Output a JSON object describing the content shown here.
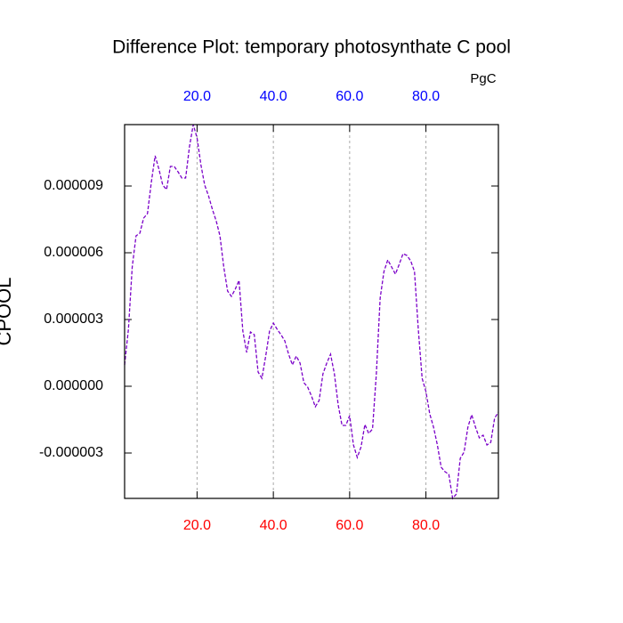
{
  "chart_data": {
    "type": "line",
    "title": "Difference Plot: temporary photosynthate C pool",
    "ylabel": "CPOOL",
    "x2label": "PgC",
    "x": [
      1,
      2,
      3,
      4,
      5,
      6,
      7,
      8,
      9,
      10,
      11,
      12,
      13,
      14,
      15,
      16,
      17,
      18,
      19,
      20,
      21,
      22,
      23,
      24,
      25,
      26,
      27,
      28,
      29,
      30,
      31,
      32,
      33,
      34,
      35,
      36,
      37,
      38,
      39,
      40,
      41,
      42,
      43,
      44,
      45,
      46,
      47,
      48,
      49,
      50,
      51,
      52,
      53,
      54,
      55,
      56,
      57,
      58,
      59,
      60,
      61,
      62,
      63,
      64,
      65,
      66,
      67,
      68,
      69,
      70,
      71,
      72,
      73,
      74,
      75,
      76,
      77,
      78,
      79,
      80,
      81,
      82,
      83,
      84,
      85,
      86,
      87,
      88,
      89,
      90,
      91,
      92,
      93,
      94,
      95,
      96,
      97,
      98,
      99
    ],
    "series": [
      {
        "color": "#7a00c8",
        "dash": true,
        "values": [
          9.6e-07,
          2.56e-06,
          5.36e-06,
          6.76e-06,
          6.88e-06,
          7.56e-06,
          7.76e-06,
          9.16e-06,
          1.036e-05,
          9.76e-06,
          9.04e-06,
          8.84e-06,
          9.88e-06,
          9.88e-06,
          9.64e-06,
          9.36e-06,
          9.36e-06,
          1.076e-05,
          1.176e-05,
          1.116e-05,
          9.96e-06,
          9.04e-06,
          8.56e-06,
          7.96e-06,
          7.44e-06,
          6.76e-06,
          5.36e-06,
          4.28e-06,
          4.04e-06,
          4.36e-06,
          4.76e-06,
          2.48e-06,
          1.52e-06,
          2.44e-06,
          2.32e-06,
          6.4e-07,
          3.6e-07,
          1.36e-06,
          2.48e-06,
          2.84e-06,
          2.56e-06,
          2.32e-06,
          2.04e-06,
          1.44e-06,
          9.6e-07,
          1.36e-06,
          1.04e-06,
          1.6e-07,
          -4e-08,
          -4.4e-07,
          -9.2e-07,
          -6.4e-07,
          5.6e-07,
          1.04e-06,
          1.44e-06,
          5.6e-07,
          -8.4e-07,
          -1.76e-06,
          -1.76e-06,
          -1.32e-06,
          -2.64e-06,
          -3.2e-06,
          -2.72e-06,
          -1.72e-06,
          -2.12e-06,
          -1.92e-06,
          5.6e-07,
          3.96e-06,
          5.16e-06,
          5.68e-06,
          5.36e-06,
          5.04e-06,
          5.48e-06,
          5.96e-06,
          5.88e-06,
          5.64e-06,
          5.16e-06,
          2.56e-06,
          3.6e-07,
          -2.4e-07,
          -1.24e-06,
          -1.84e-06,
          -2.64e-06,
          -3.64e-06,
          -3.84e-06,
          -3.96e-06,
          -5.04e-06,
          -4.84e-06,
          -3.24e-06,
          -2.96e-06,
          -1.84e-06,
          -1.28e-06,
          -1.84e-06,
          -2.32e-06,
          -2.2e-06,
          -2.64e-06,
          -2.52e-06,
          -1.44e-06,
          -1.16e-06
        ]
      }
    ],
    "xlim": [
      1,
      99
    ],
    "ylim": [
      -5.04e-06,
      1.176e-05
    ],
    "xticks": [
      {
        "value": 20,
        "label": "20.0"
      },
      {
        "value": 40,
        "label": "40.0"
      },
      {
        "value": 60,
        "label": "60.0"
      },
      {
        "value": 80,
        "label": "80.0"
      }
    ],
    "x2ticks": [
      {
        "value": 20,
        "label": "20.0"
      },
      {
        "value": 40,
        "label": "40.0"
      },
      {
        "value": 60,
        "label": "60.0"
      },
      {
        "value": 80,
        "label": "80.0"
      }
    ],
    "yticks": [
      {
        "value": 9e-06,
        "label": "0.000009"
      },
      {
        "value": 6e-06,
        "label": "0.000006"
      },
      {
        "value": 3e-06,
        "label": "0.000003"
      },
      {
        "value": 0,
        "label": "0.000000"
      },
      {
        "value": -3e-06,
        "label": "-0.000003"
      }
    ],
    "xtick_color": "#ff0000",
    "x2tick_color": "#0000ff",
    "grid": true
  }
}
